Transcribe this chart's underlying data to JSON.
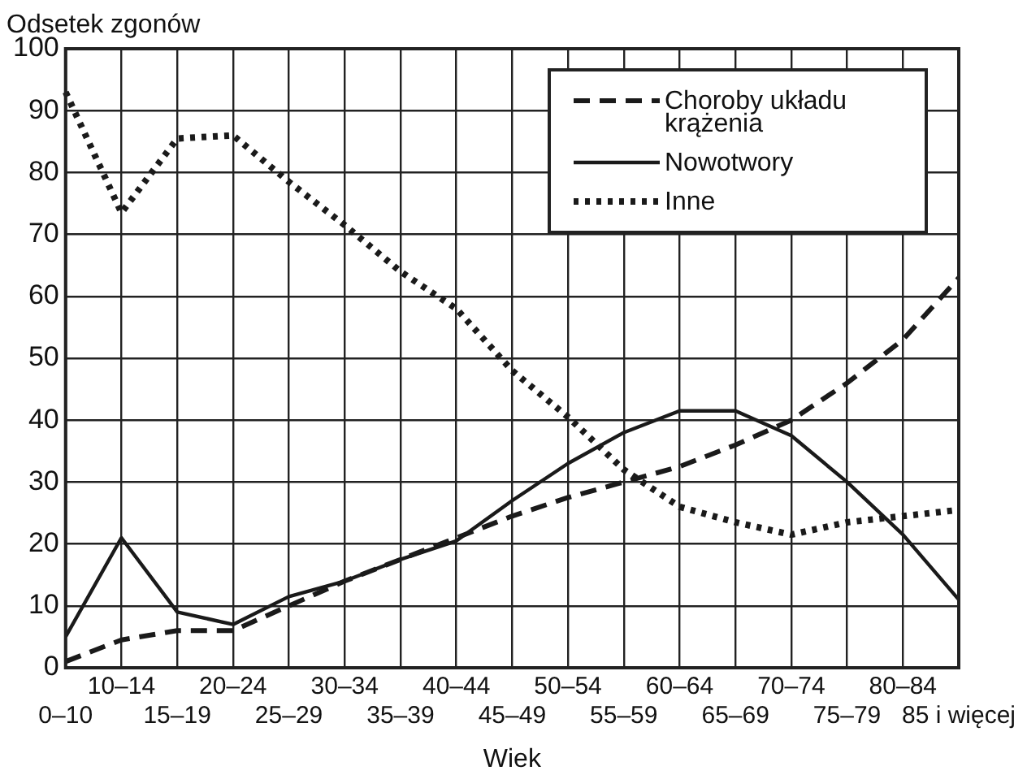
{
  "chart_data": {
    "type": "line",
    "ylabel": "Odsetek zgonów",
    "xlabel": "Wiek",
    "categories": [
      "0–10",
      "10–14",
      "15–19",
      "20–24",
      "25–29",
      "30–34",
      "35–39",
      "40–44",
      "45–49",
      "50–54",
      "55–59",
      "60–64",
      "65–69",
      "70–74",
      "75–79",
      "80–84",
      "85 i więcej"
    ],
    "series": [
      {
        "name": "Choroby układu krążenia",
        "color": "#1a1a1a",
        "line_style": "dashed",
        "values": [
          1,
          4.5,
          6,
          6,
          10,
          14,
          17.5,
          21,
          24.5,
          27.5,
          30,
          32.5,
          36,
          40,
          46,
          53,
          63
        ]
      },
      {
        "name": "Nowotwory",
        "color": "#1a1a1a",
        "line_style": "solid",
        "values": [
          5,
          21,
          9,
          7,
          11.5,
          14,
          17.5,
          20.5,
          27,
          33,
          38,
          41.5,
          41.5,
          37.5,
          30,
          21.5,
          11
        ]
      },
      {
        "name": "Inne",
        "color": "#1a1a1a",
        "line_style": "dotted",
        "values": [
          93,
          73.5,
          85.5,
          86,
          78.5,
          71.5,
          64,
          58,
          48,
          40.5,
          32,
          26,
          23.5,
          21.5,
          23.5,
          24.5,
          25.5
        ]
      }
    ],
    "ylim": [
      0,
      100
    ],
    "yticks": [
      0,
      10,
      20,
      30,
      40,
      50,
      60,
      70,
      80,
      90,
      100
    ],
    "grid": true,
    "legend": "top right",
    "marker": "none"
  }
}
